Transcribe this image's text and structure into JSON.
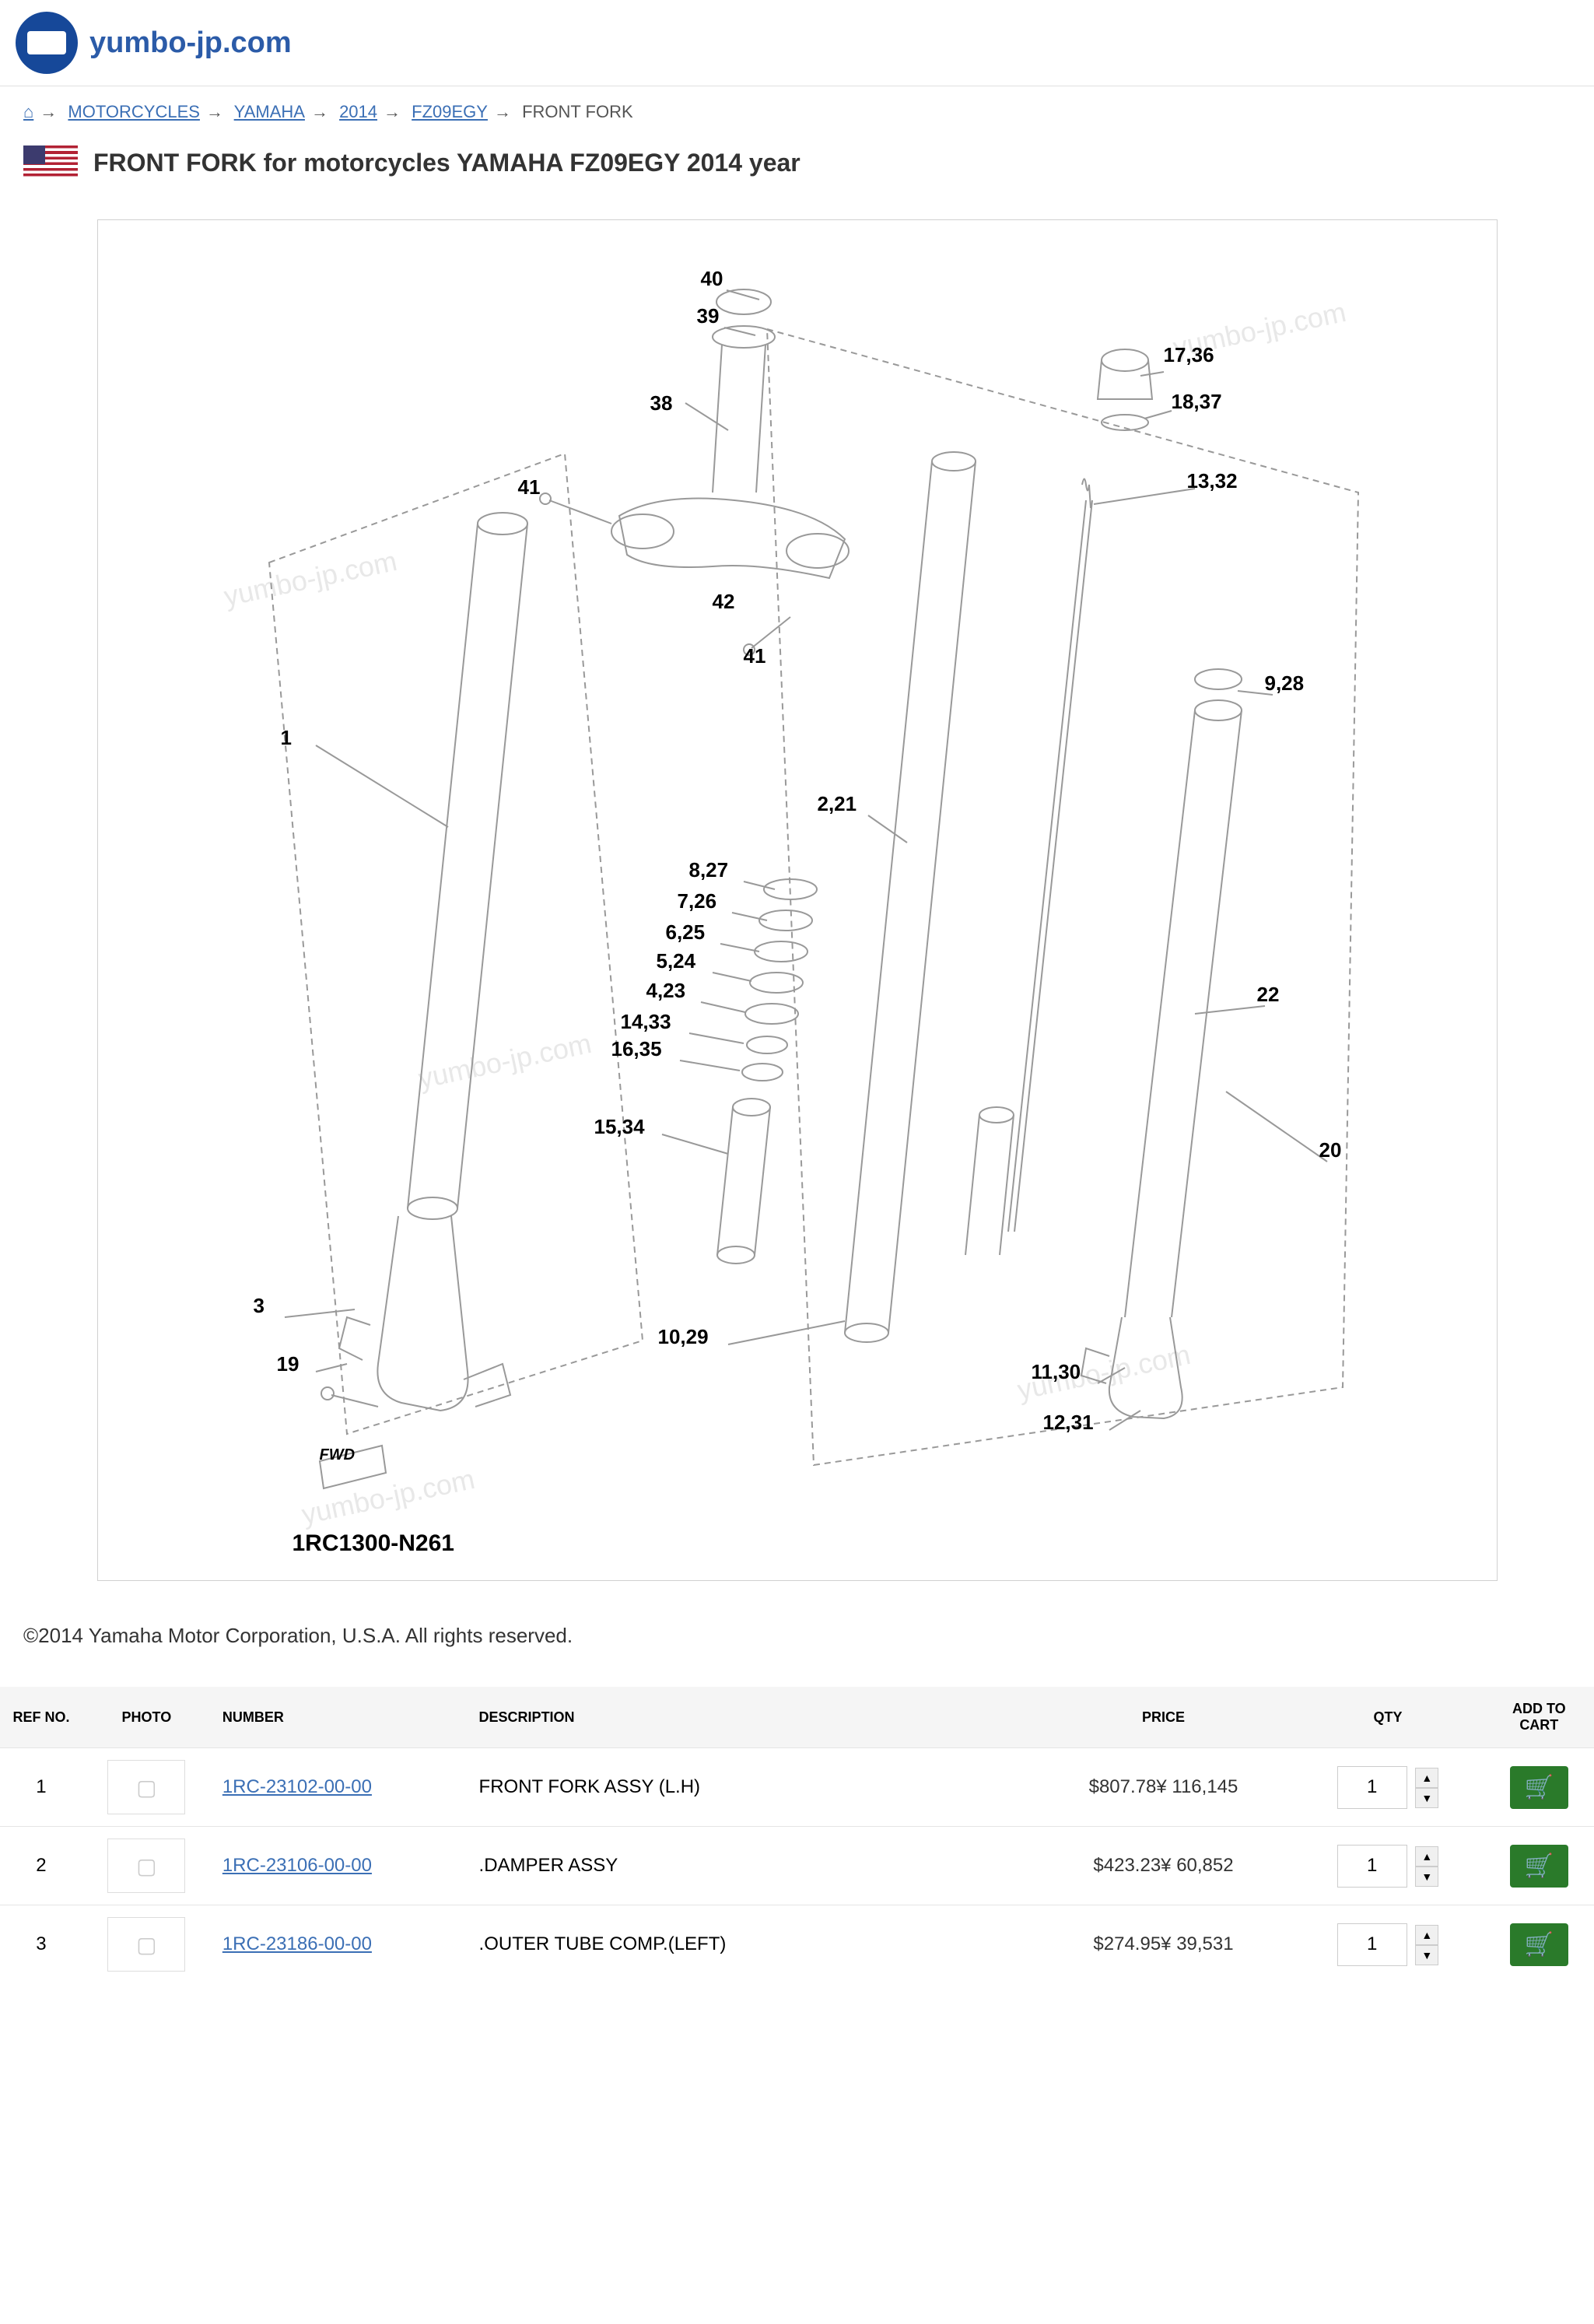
{
  "site_name": "yumbo-jp.com",
  "breadcrumb": {
    "home": "⌂",
    "items": [
      "MOTORCYCLES",
      "YAMAHA",
      "2014",
      "FZ09EGY"
    ],
    "current": "FRONT FORK"
  },
  "title": "FRONT FORK for motorcycles YAMAHA FZ09EGY 2014 year",
  "diagram": {
    "code": "1RC1300-N261",
    "watermark": "yumbo-jp.com",
    "callouts": [
      "40",
      "39",
      "38",
      "41",
      "42",
      "41",
      "17,36",
      "18,37",
      "13,32",
      "1",
      "2,21",
      "3",
      "19",
      "8,27",
      "7,26",
      "6,25",
      "5,24",
      "4,23",
      "14,33",
      "16,35",
      "15,34",
      "10,29",
      "9,28",
      "22",
      "20",
      "11,30",
      "12,31"
    ]
  },
  "copyright": "©2014 Yamaha Motor Corporation, U.S.A. All rights reserved.",
  "table": {
    "headers": {
      "ref": "REF NO.",
      "photo": "PHOTO",
      "number": "NUMBER",
      "desc": "DESCRIPTION",
      "price": "PRICE",
      "qty": "QTY",
      "add": "ADD TO CART"
    },
    "rows": [
      {
        "ref": "1",
        "number": "1RC-23102-00-00",
        "desc": "FRONT FORK ASSY (L.H)",
        "price_usd": "$807.78",
        "price_jpy": "¥ 116,145",
        "qty": "1"
      },
      {
        "ref": "2",
        "number": "1RC-23106-00-00",
        "desc": ".DAMPER ASSY",
        "price_usd": "$423.23",
        "price_jpy": "¥ 60,852",
        "qty": "1"
      },
      {
        "ref": "3",
        "number": "1RC-23186-00-00",
        "desc": ".OUTER TUBE COMP.(LEFT)",
        "price_usd": "$274.95",
        "price_jpy": "¥ 39,531",
        "qty": "1"
      }
    ]
  },
  "colors": {
    "link": "#3b6fb5",
    "cart_button": "#2a7a2a",
    "logo_bg": "#164899"
  }
}
